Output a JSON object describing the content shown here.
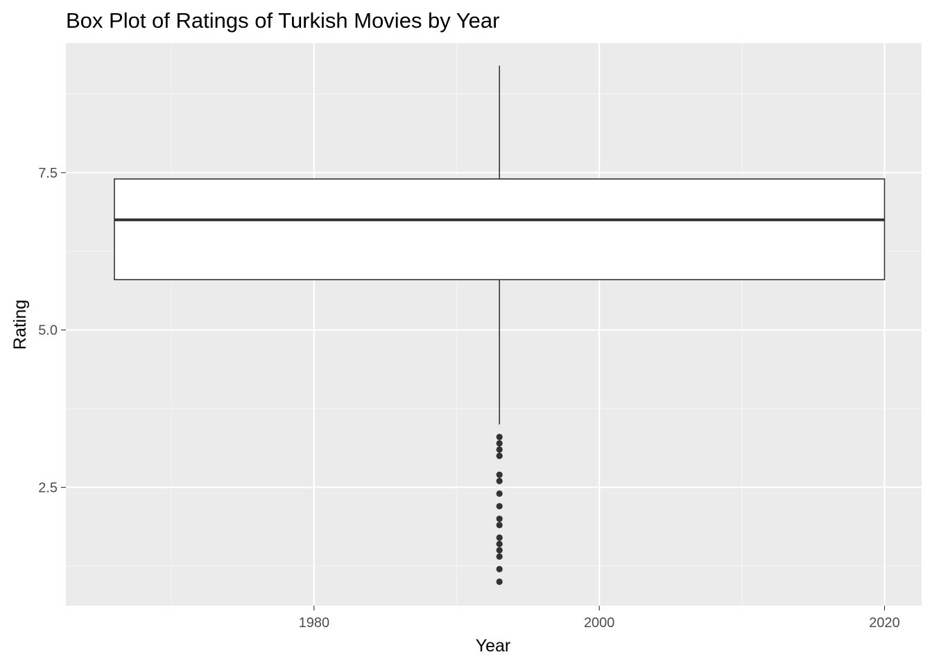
{
  "chart_data": {
    "type": "boxplot",
    "title": "Box Plot of Ratings of Turkish Movies by Year",
    "xlabel": "Year",
    "ylabel": "Rating",
    "xlim": [
      1962.6,
      2022.6
    ],
    "ylim": [
      0.62,
      9.56
    ],
    "x_major_ticks": [
      1980,
      2000,
      2020
    ],
    "x_tick_labels": [
      "1980",
      "2000",
      "2020"
    ],
    "x_minor_ticks": [
      1970,
      1990,
      2010
    ],
    "y_major_ticks": [
      2.5,
      5.0,
      7.5
    ],
    "y_tick_labels": [
      "2.5",
      "5.0",
      "7.5"
    ],
    "y_minor_ticks": [
      1.25,
      3.75,
      6.25,
      8.75
    ],
    "grid": true,
    "box": {
      "x_center": 1993,
      "x_min": 1966,
      "x_max": 2020,
      "whisker_low": 3.5,
      "q1": 5.8,
      "median": 6.75,
      "q3": 7.4,
      "whisker_high": 9.2
    },
    "outliers": [
      3.3,
      3.2,
      3.1,
      3.0,
      2.7,
      2.6,
      2.4,
      2.2,
      2.0,
      1.9,
      1.7,
      1.6,
      1.5,
      1.4,
      1.2,
      1.0
    ]
  },
  "colors": {
    "panel_background": "#ebebeb",
    "grid_major": "#ffffff",
    "grid_minor": "#f5f5f5",
    "box_fill": "#ffffff",
    "box_stroke": "#333333",
    "outlier": "#333333",
    "tick_label": "#4d4d4d",
    "tick_mark": "#333333"
  }
}
